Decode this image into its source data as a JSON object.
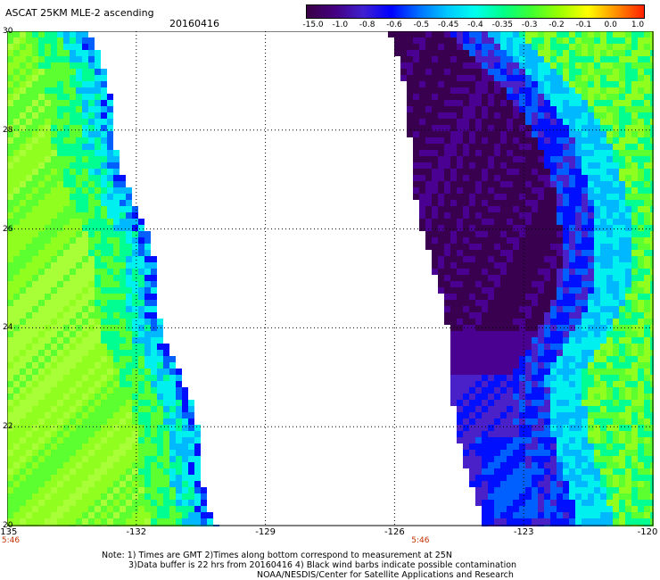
{
  "header": {
    "title": "ASCAT 25KM MLE-2 ascending",
    "date": "20160416"
  },
  "colorbar": {
    "labels": [
      "-15.0",
      "-1.0",
      "-0.8",
      "-0.6",
      "-0.5",
      "-0.45",
      "-0.4",
      "-0.35",
      "-0.3",
      "-0.2",
      "-0.1",
      "0.0",
      "1.0"
    ],
    "colors": [
      "#3a0045",
      "#440080",
      "#4020d0",
      "#0000ff",
      "#0070ff",
      "#00c8ff",
      "#00ffee",
      "#00ff88",
      "#40ff30",
      "#9cff00",
      "#ffff00",
      "#ff9000",
      "#ff2000"
    ]
  },
  "map": {
    "lon_range": [
      -135,
      -120
    ],
    "lat_range": [
      20,
      30
    ],
    "x_ticks": [
      "-135",
      "-132",
      "-129",
      "-126",
      "-123",
      "-120"
    ],
    "y_ticks": [
      "30",
      "28",
      "26",
      "24",
      "22",
      "20"
    ],
    "times": [
      {
        "lon": -135,
        "label": "5:46"
      },
      {
        "lon": -125.4,
        "label": "5:46"
      }
    ]
  },
  "notes": {
    "line1": "Note: 1) Times are GMT 2)Times along bottom correspond to measurement at 25N",
    "line2": "3)Data buffer is 22 hrs from 20160416 4) Black wind barbs indicate possible contamination",
    "line3": "NOAA/NESDIS/Center for Satellite Applications and Research"
  }
}
